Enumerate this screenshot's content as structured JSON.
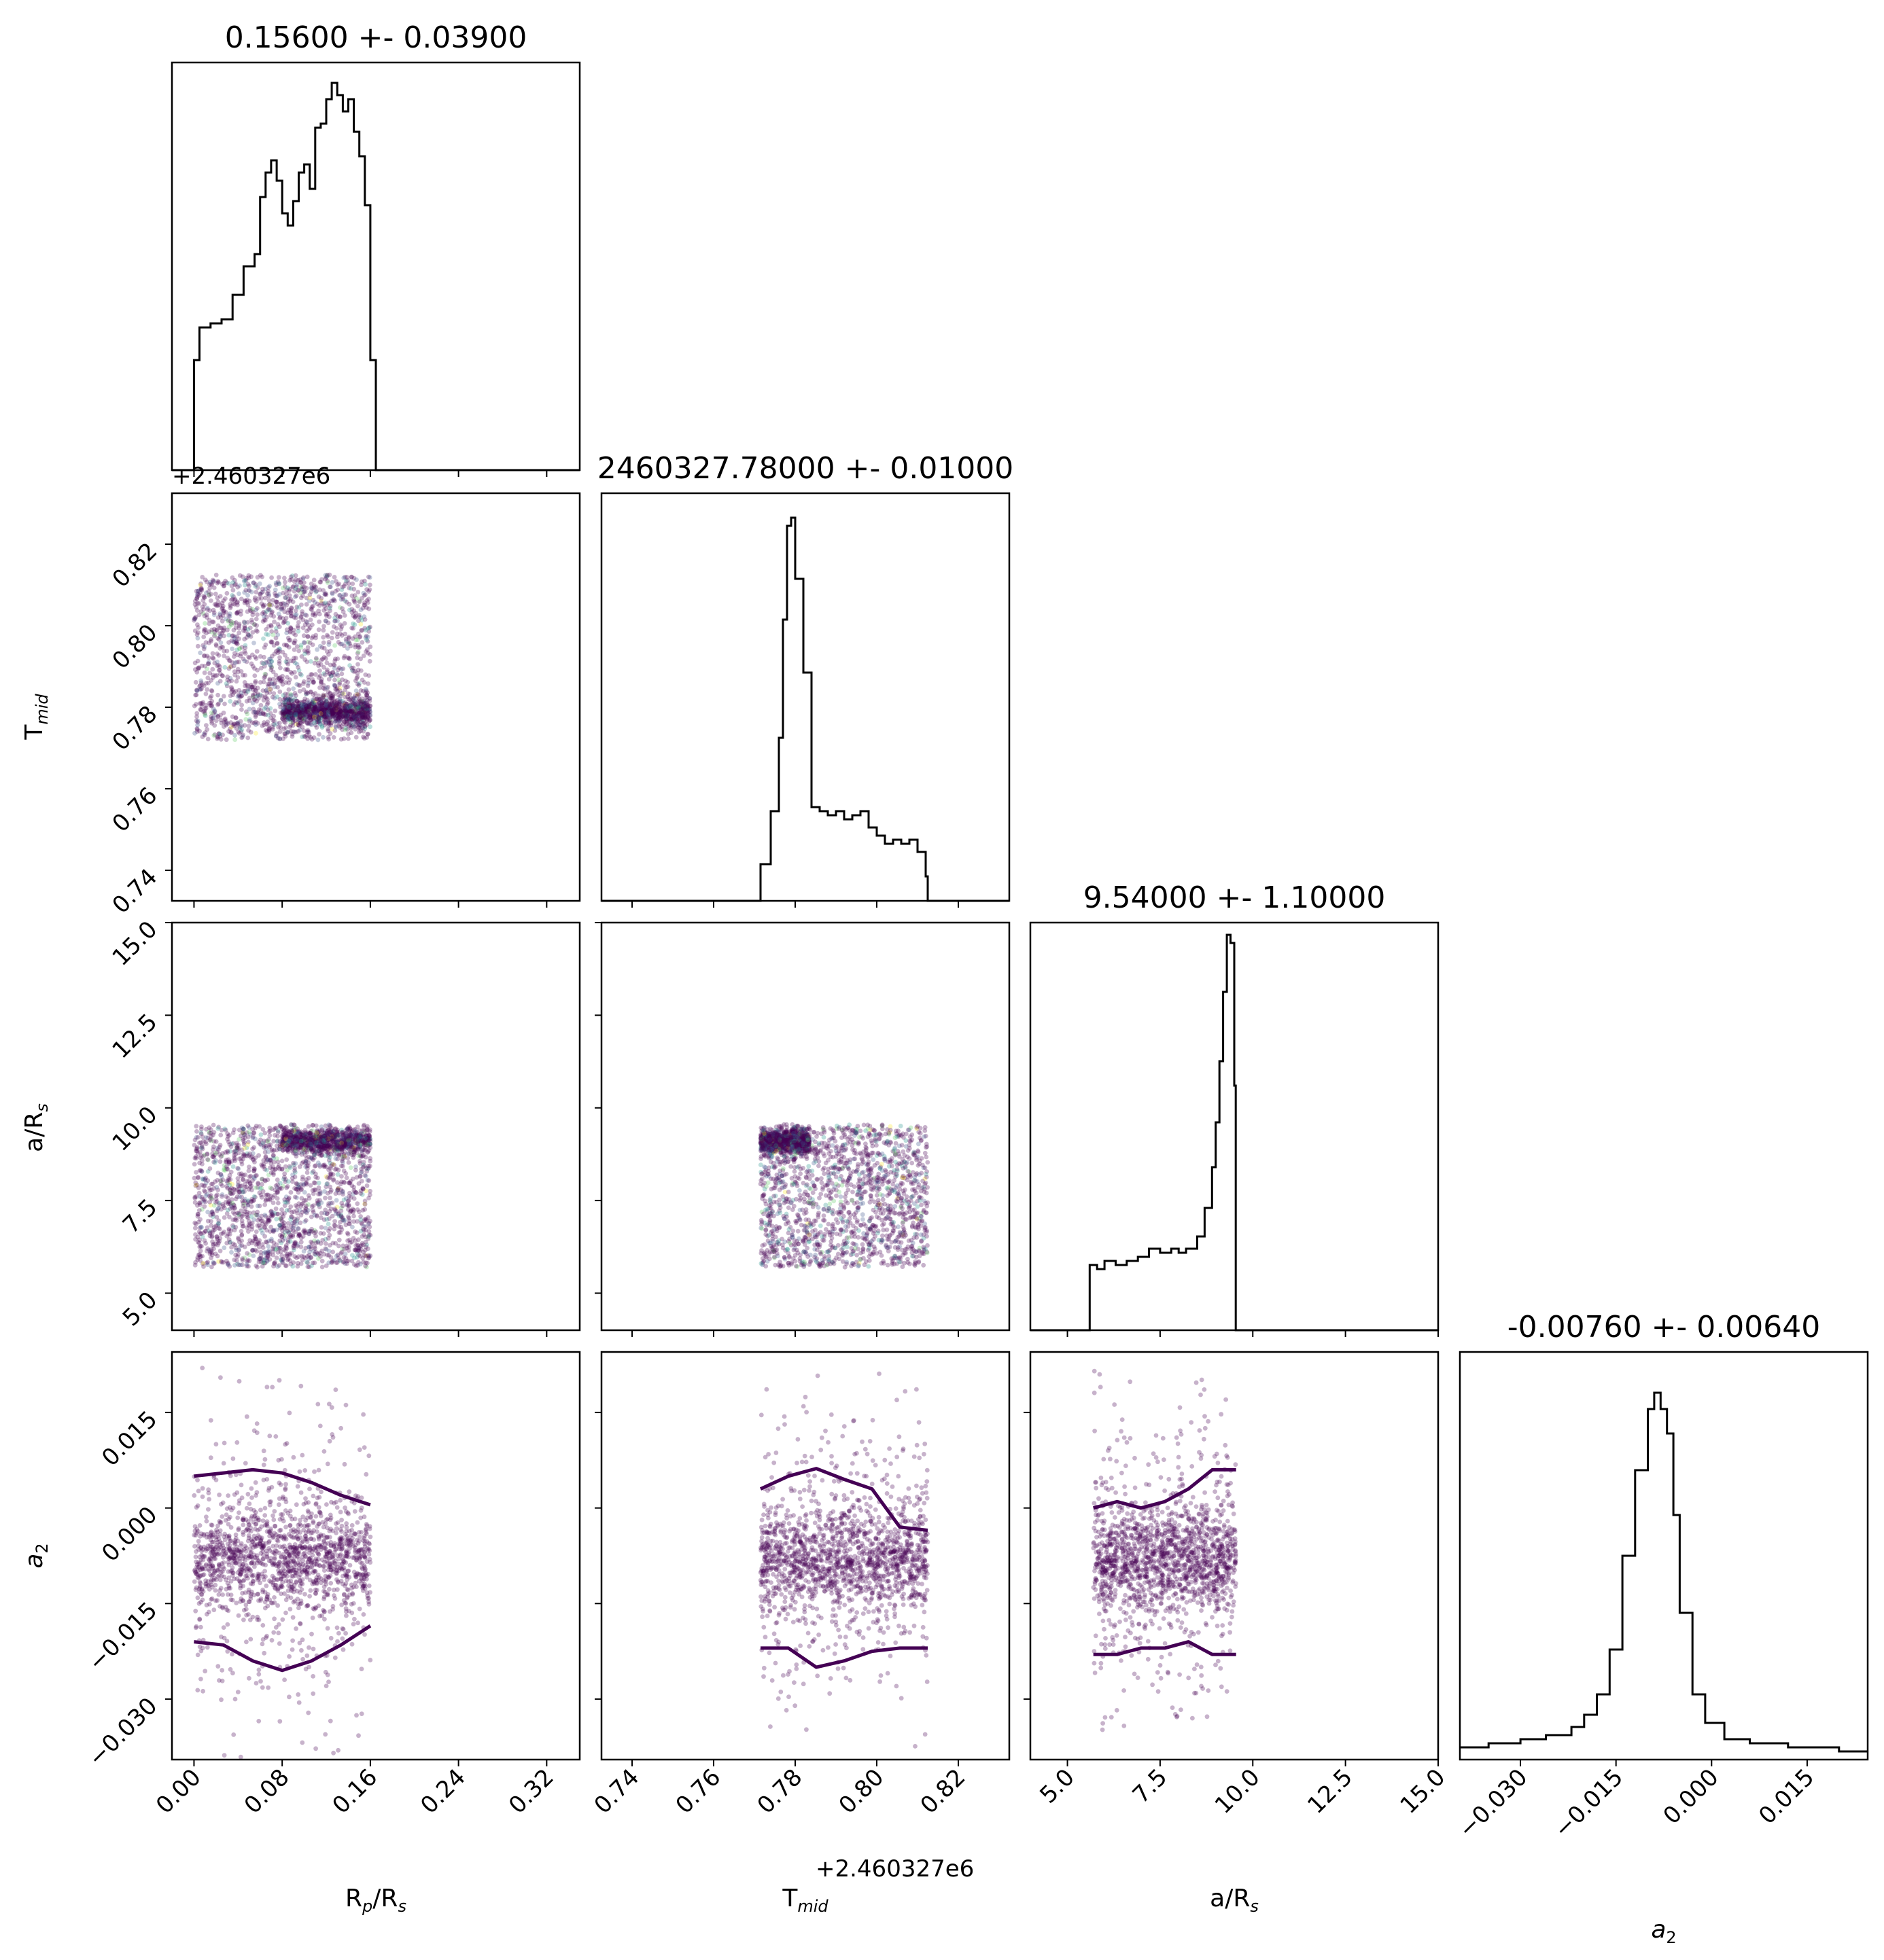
{
  "chart_data": {
    "type": "corner",
    "parameters": [
      {
        "key": "rprs",
        "label_main": "R",
        "label_sub": "p",
        "label_suffix_main": "/R",
        "label_suffix_sub": "s",
        "range": [
          -0.02,
          0.35
        ],
        "ticks": [
          "0.00",
          "0.08",
          "0.16",
          "0.24",
          "0.32"
        ],
        "tick_values": [
          0.0,
          0.08,
          0.16,
          0.24,
          0.32
        ],
        "title": "0.15600 +- 0.03900"
      },
      {
        "key": "tmid",
        "label_main": "T",
        "label_sub": "mid",
        "label_suffix_main": "",
        "label_suffix_sub": "",
        "range": [
          0.7325,
          0.8325
        ],
        "ticks": [
          "0.74",
          "0.76",
          "0.78",
          "0.80",
          "0.82"
        ],
        "tick_values": [
          0.74,
          0.76,
          0.78,
          0.8,
          0.82
        ],
        "offset": "+2.460327e6",
        "title": "2460327.78000 +- 0.01000"
      },
      {
        "key": "ars",
        "label_main": "a/R",
        "label_sub": "s",
        "label_suffix_main": "",
        "label_suffix_sub": "",
        "range": [
          4.0,
          15.0
        ],
        "ticks": [
          "5.0",
          "7.5",
          "10.0",
          "12.5",
          "15.0"
        ],
        "tick_values": [
          5.0,
          7.5,
          10.0,
          12.5,
          15.0
        ],
        "title": "9.54000 +- 1.10000"
      },
      {
        "key": "a2",
        "label_main": "a",
        "label_sub": "2",
        "label_suffix_main": "",
        "label_suffix_sub": "",
        "italic": true,
        "range": [
          -0.0395,
          0.0245
        ],
        "ticks": [
          "−0.030",
          "−0.015",
          "0.000",
          "0.015"
        ],
        "tick_values": [
          -0.03,
          -0.015,
          0.0,
          0.015
        ],
        "title": "-0.00760 +- 0.00640"
      }
    ],
    "histograms": [
      {
        "param": "rprs",
        "bins": [
          -0.02,
          0.35
        ],
        "points": [
          [
            0.0,
            0.0
          ],
          [
            0.0,
            0.27
          ],
          [
            0.005,
            0.35
          ],
          [
            0.015,
            0.36
          ],
          [
            0.025,
            0.37
          ],
          [
            0.035,
            0.43
          ],
          [
            0.045,
            0.5
          ],
          [
            0.055,
            0.53
          ],
          [
            0.06,
            0.67
          ],
          [
            0.065,
            0.73
          ],
          [
            0.07,
            0.76
          ],
          [
            0.075,
            0.71
          ],
          [
            0.08,
            0.63
          ],
          [
            0.085,
            0.6
          ],
          [
            0.09,
            0.66
          ],
          [
            0.095,
            0.73
          ],
          [
            0.1,
            0.75
          ],
          [
            0.105,
            0.69
          ],
          [
            0.11,
            0.84
          ],
          [
            0.115,
            0.85
          ],
          [
            0.12,
            0.91
          ],
          [
            0.125,
            0.95
          ],
          [
            0.13,
            0.92
          ],
          [
            0.135,
            0.88
          ],
          [
            0.14,
            0.91
          ],
          [
            0.145,
            0.83
          ],
          [
            0.15,
            0.77
          ],
          [
            0.155,
            0.65
          ],
          [
            0.16,
            0.27
          ],
          [
            0.165,
            0.0
          ]
        ]
      },
      {
        "param": "tmid",
        "bins": [
          0.7325,
          0.8325
        ],
        "points": [
          [
            0.7715,
            0.0
          ],
          [
            0.7715,
            0.09
          ],
          [
            0.774,
            0.22
          ],
          [
            0.776,
            0.4
          ],
          [
            0.777,
            0.69
          ],
          [
            0.778,
            0.92
          ],
          [
            0.779,
            0.94
          ],
          [
            0.78,
            0.79
          ],
          [
            0.782,
            0.56
          ],
          [
            0.784,
            0.23
          ],
          [
            0.786,
            0.22
          ],
          [
            0.788,
            0.21
          ],
          [
            0.79,
            0.22
          ],
          [
            0.792,
            0.2
          ],
          [
            0.794,
            0.21
          ],
          [
            0.796,
            0.22
          ],
          [
            0.798,
            0.18
          ],
          [
            0.8,
            0.16
          ],
          [
            0.802,
            0.14
          ],
          [
            0.804,
            0.15
          ],
          [
            0.806,
            0.14
          ],
          [
            0.808,
            0.15
          ],
          [
            0.81,
            0.12
          ],
          [
            0.812,
            0.06
          ],
          [
            0.8125,
            0.0
          ]
        ]
      },
      {
        "param": "ars",
        "bins": [
          4.0,
          15.0
        ],
        "points": [
          [
            5.6,
            0.0
          ],
          [
            5.6,
            0.16
          ],
          [
            5.8,
            0.15
          ],
          [
            6.0,
            0.17
          ],
          [
            6.3,
            0.16
          ],
          [
            6.6,
            0.17
          ],
          [
            6.9,
            0.18
          ],
          [
            7.2,
            0.2
          ],
          [
            7.5,
            0.19
          ],
          [
            7.8,
            0.2
          ],
          [
            8.0,
            0.19
          ],
          [
            8.2,
            0.2
          ],
          [
            8.5,
            0.23
          ],
          [
            8.7,
            0.3
          ],
          [
            8.9,
            0.4
          ],
          [
            9.0,
            0.51
          ],
          [
            9.1,
            0.66
          ],
          [
            9.2,
            0.83
          ],
          [
            9.3,
            0.97
          ],
          [
            9.4,
            0.95
          ],
          [
            9.5,
            0.6
          ],
          [
            9.54,
            0.0
          ]
        ]
      },
      {
        "param": "a2",
        "bins": [
          -0.0395,
          0.0245
        ],
        "points": [
          [
            -0.0395,
            0.03
          ],
          [
            -0.035,
            0.04
          ],
          [
            -0.03,
            0.05
          ],
          [
            -0.026,
            0.06
          ],
          [
            -0.022,
            0.08
          ],
          [
            -0.02,
            0.11
          ],
          [
            -0.018,
            0.16
          ],
          [
            -0.016,
            0.27
          ],
          [
            -0.014,
            0.5
          ],
          [
            -0.012,
            0.71
          ],
          [
            -0.01,
            0.86
          ],
          [
            -0.009,
            0.9
          ],
          [
            -0.008,
            0.86
          ],
          [
            -0.007,
            0.8
          ],
          [
            -0.006,
            0.6
          ],
          [
            -0.005,
            0.36
          ],
          [
            -0.003,
            0.16
          ],
          [
            -0.001,
            0.09
          ],
          [
            0.002,
            0.05
          ],
          [
            0.006,
            0.04
          ],
          [
            0.012,
            0.03
          ],
          [
            0.02,
            0.02
          ],
          [
            0.0245,
            0.02
          ]
        ]
      }
    ],
    "pairs": [
      {
        "x": "rprs",
        "y": "tmid",
        "x_range": [
          0.0,
          0.16
        ],
        "y_range": [
          0.772,
          0.8125
        ],
        "dense_y": 0.779,
        "color": "#440154"
      },
      {
        "x": "rprs",
        "y": "ars",
        "x_range": [
          0.0,
          0.16
        ],
        "y_range": [
          5.7,
          9.55
        ],
        "dense_y": 9.1,
        "color": "#440154"
      },
      {
        "x": "tmid",
        "y": "ars",
        "x_range": [
          0.7715,
          0.8125
        ],
        "y_range": [
          5.7,
          9.55
        ],
        "dense_y": 9.1,
        "color": "#440154"
      },
      {
        "x": "rprs",
        "y": "a2",
        "x_range": [
          0.0,
          0.16
        ],
        "y_range": [
          -0.0395,
          0.0245
        ],
        "dense_y": -0.008,
        "color": "#440154"
      },
      {
        "x": "tmid",
        "y": "a2",
        "x_range": [
          0.7715,
          0.8125
        ],
        "y_range": [
          -0.0395,
          0.0245
        ],
        "dense_y": -0.008,
        "color": "#440154"
      },
      {
        "x": "ars",
        "y": "a2",
        "x_range": [
          5.7,
          9.55
        ],
        "y_range": [
          -0.0395,
          0.0245
        ],
        "dense_y": -0.008,
        "color": "#440154"
      }
    ],
    "grid": false,
    "legend": "none",
    "point_color": "#440154",
    "contour_color": "#440154"
  }
}
